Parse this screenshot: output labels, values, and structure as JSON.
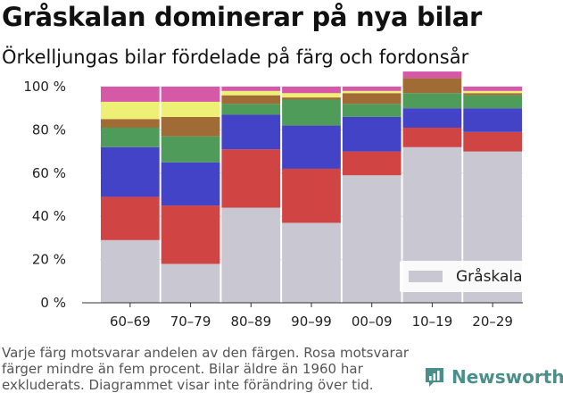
{
  "title": "Gråskalan dominerar på nya bilar",
  "subtitle": "Örkelljungas bilar fördelade på färg och fordonsår",
  "footnote": "Varje färg motsvarar andelen av den färgen. Rosa motsvarar färger mindre än fem procent. Bilar äldre än 1960 har exkluderats. Diagrammet visar inte förändring över tid.",
  "brand": {
    "name": "Newsworthy",
    "icon": "newsworthy-logo-icon",
    "color": "#4a8f8a"
  },
  "chart_data": {
    "type": "bar",
    "stacked": true,
    "categories": [
      "60–69",
      "70–79",
      "80–89",
      "90–99",
      "00–09",
      "10–19",
      "20–29"
    ],
    "ylim": [
      0,
      100
    ],
    "yticks": [
      0,
      20,
      40,
      60,
      80,
      100
    ],
    "ytick_labels": [
      "0 %",
      "20 %",
      "40 %",
      "60 %",
      "80 %",
      "100 %"
    ],
    "grid": true,
    "legend": {
      "position": "bottom-right",
      "entries": [
        "Gråskala"
      ]
    },
    "series": [
      {
        "name": "Gråskala",
        "color": "#c8c7d2",
        "values": [
          29,
          18,
          44,
          37,
          59,
          72,
          70
        ]
      },
      {
        "color": "#d04444",
        "values": [
          20,
          27,
          27,
          25,
          11,
          9,
          9
        ]
      },
      {
        "color": "#4343c8",
        "values": [
          23,
          20,
          16,
          20,
          16,
          9,
          11
        ]
      },
      {
        "color": "#4e9b5a",
        "values": [
          9,
          12,
          5,
          12,
          6,
          7,
          6
        ]
      },
      {
        "color": "#a06b35",
        "values": [
          4,
          9,
          4,
          1,
          5,
          7,
          1
        ]
      },
      {
        "color": "#eef075",
        "values": [
          8,
          7,
          2,
          2,
          1,
          0,
          1
        ]
      },
      {
        "color": "#d659a8",
        "values": [
          7,
          7,
          2,
          3,
          2,
          3,
          2
        ]
      }
    ]
  }
}
